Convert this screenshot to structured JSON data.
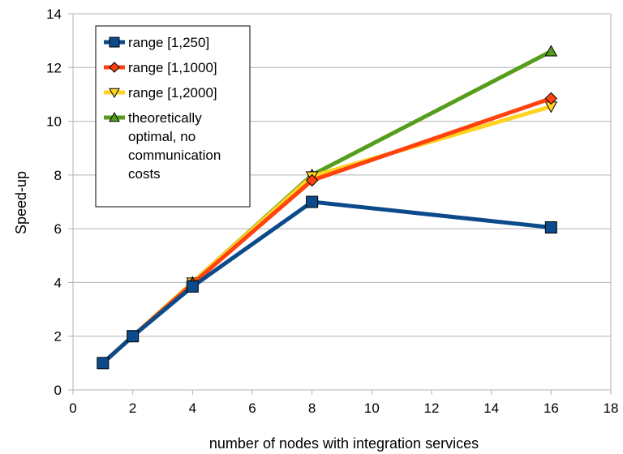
{
  "chart_data": {
    "type": "line",
    "xlabel": "number of nodes with integration services",
    "ylabel": "Speed-up",
    "xlim": [
      0,
      18
    ],
    "ylim": [
      0,
      14
    ],
    "xticks": [
      0,
      2,
      4,
      6,
      8,
      10,
      12,
      14,
      16,
      18
    ],
    "yticks": [
      0,
      2,
      4,
      6,
      8,
      10,
      12,
      14
    ],
    "grid": "horizontal",
    "legend_position": "top-left",
    "series": [
      {
        "name": "range [1,250]",
        "color": "#0b4a8b",
        "marker": "square",
        "x": [
          1,
          2,
          4,
          8,
          16
        ],
        "y": [
          1.0,
          2.0,
          3.85,
          7.0,
          6.05
        ]
      },
      {
        "name": "range [1,1000]",
        "color": "#ff420e",
        "marker": "diamond",
        "x": [
          1,
          2,
          4,
          8,
          16
        ],
        "y": [
          1.0,
          2.0,
          3.95,
          7.8,
          10.85
        ]
      },
      {
        "name": "range [1,2000]",
        "color": "#ffd320",
        "marker": "triangle-down",
        "x": [
          1,
          2,
          4,
          8,
          16
        ],
        "y": [
          1.0,
          2.0,
          4.0,
          7.95,
          10.55
        ]
      },
      {
        "name": "theoretically optimal, no communication costs",
        "color": "#579d1c",
        "marker": "triangle-up",
        "x": [
          1,
          2,
          4,
          8,
          16
        ],
        "y": [
          1.0,
          2.0,
          4.0,
          8.0,
          12.6
        ]
      }
    ],
    "legend_lines": [
      [
        "range [1,250]"
      ],
      [
        "range [1,1000]"
      ],
      [
        "range [1,2000]"
      ],
      [
        "theoretically",
        "optimal, no",
        "communication",
        "costs"
      ]
    ]
  }
}
